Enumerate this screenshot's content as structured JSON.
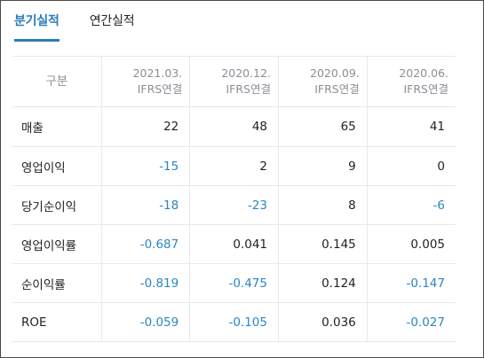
{
  "tabs": [
    {
      "label": "분기실적",
      "active": true
    },
    {
      "label": "연간실적",
      "active": false
    }
  ],
  "table": {
    "header_first": "구분",
    "columns": [
      {
        "period": "2021.03.",
        "basis": "IFRS연결"
      },
      {
        "period": "2020.12.",
        "basis": "IFRS연결"
      },
      {
        "period": "2020.09.",
        "basis": "IFRS연결"
      },
      {
        "period": "2020.06.",
        "basis": "IFRS연결"
      }
    ],
    "rows": [
      {
        "label": "매출",
        "values": [
          "22",
          "48",
          "65",
          "41"
        ]
      },
      {
        "label": "영업이익",
        "values": [
          "-15",
          "2",
          "9",
          "0"
        ]
      },
      {
        "label": "당기순이익",
        "values": [
          "-18",
          "-23",
          "8",
          "-6"
        ]
      },
      {
        "label": "영업이익률",
        "values": [
          "-0.687",
          "0.041",
          "0.145",
          "0.005"
        ]
      },
      {
        "label": "순이익률",
        "values": [
          "-0.819",
          "-0.475",
          "0.124",
          "-0.147"
        ]
      },
      {
        "label": "ROE",
        "values": [
          "-0.059",
          "-0.105",
          "0.036",
          "-0.027"
        ]
      }
    ]
  },
  "colors": {
    "accent": "#2a7db8",
    "negative": "#2b86c4",
    "header_text": "#8a8f96"
  }
}
